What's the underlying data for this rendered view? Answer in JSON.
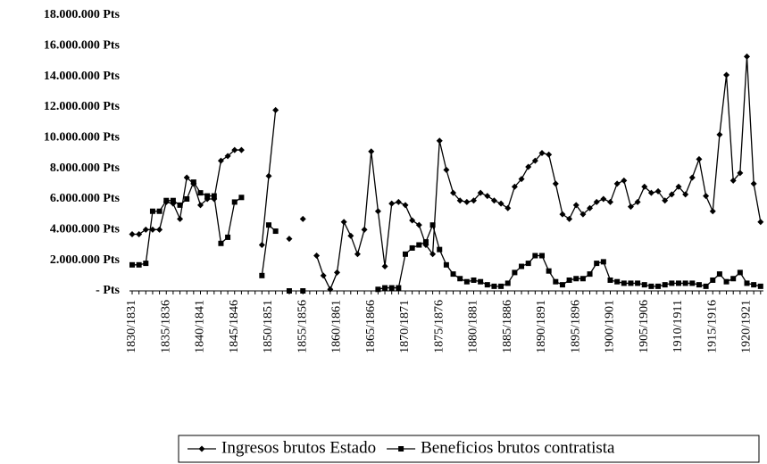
{
  "chart_data": {
    "type": "line",
    "categories": [
      "1830/1831",
      null,
      null,
      null,
      null,
      "1835/1836",
      null,
      null,
      null,
      null,
      "1840/1841",
      null,
      null,
      null,
      null,
      "1845/1846",
      null,
      null,
      null,
      null,
      "1850/1851",
      null,
      null,
      null,
      null,
      "1855/1856",
      null,
      null,
      null,
      null,
      "1860/1861",
      null,
      null,
      null,
      null,
      "1865/1866",
      null,
      null,
      null,
      null,
      "1870/1871",
      null,
      null,
      null,
      null,
      "1875/1876",
      null,
      null,
      null,
      null,
      "1880/1881",
      null,
      null,
      null,
      null,
      "1885/1886",
      null,
      null,
      null,
      null,
      "1890/1891",
      null,
      null,
      null,
      null,
      "1895/1896",
      null,
      null,
      null,
      null,
      "1900/1901",
      null,
      null,
      null,
      null,
      "1905/1906",
      null,
      null,
      null,
      null,
      "1910/1911",
      null,
      null,
      null,
      null,
      "1915/1916",
      null,
      null,
      null,
      null,
      "1920/1921",
      null,
      null
    ],
    "series": [
      {
        "name": "Ingresos brutos Estado",
        "color": "#000000",
        "marker": "diamond",
        "values": [
          3700000,
          3700000,
          4000000,
          4000000,
          4000000,
          5800000,
          5700000,
          4700000,
          7400000,
          7000000,
          5600000,
          6000000,
          6000000,
          8500000,
          8800000,
          9200000,
          9200000,
          null,
          null,
          3000000,
          7500000,
          11800000,
          null,
          3400000,
          null,
          4700000,
          null,
          2300000,
          1000000,
          100000,
          1200000,
          4500000,
          3600000,
          2400000,
          4000000,
          9100000,
          5200000,
          1600000,
          5700000,
          5800000,
          5600000,
          4600000,
          4300000,
          3000000,
          2400000,
          9800000,
          7900000,
          6400000,
          5900000,
          5800000,
          5900000,
          6400000,
          6200000,
          5900000,
          5700000,
          5400000,
          6800000,
          7300000,
          8100000,
          8500000,
          9000000,
          8900000,
          7000000,
          5000000,
          4700000,
          5600000,
          5000000,
          5400000,
          5800000,
          6000000,
          5800000,
          7000000,
          7200000,
          5500000,
          5800000,
          6800000,
          6400000,
          6500000,
          5900000,
          6300000,
          6800000,
          6300000,
          7400000,
          8600000,
          6200000,
          5200000,
          10200000,
          14100000,
          7200000,
          7700000,
          15300000,
          7000000,
          4500000
        ]
      },
      {
        "name": "Beneficios brutos contratista",
        "color": "#000000",
        "marker": "square",
        "values": [
          1700000,
          1700000,
          1800000,
          5200000,
          5200000,
          5900000,
          5900000,
          5600000,
          6000000,
          7100000,
          6400000,
          6200000,
          6200000,
          3100000,
          3500000,
          5800000,
          6100000,
          null,
          null,
          1000000,
          4300000,
          3900000,
          null,
          0,
          null,
          0,
          null,
          null,
          null,
          null,
          null,
          null,
          null,
          null,
          null,
          null,
          100000,
          200000,
          200000,
          200000,
          2400000,
          2800000,
          3000000,
          3200000,
          4300000,
          2700000,
          1700000,
          1100000,
          800000,
          600000,
          700000,
          600000,
          400000,
          300000,
          300000,
          500000,
          1200000,
          1600000,
          1800000,
          2300000,
          2300000,
          1300000,
          600000,
          400000,
          700000,
          800000,
          800000,
          1100000,
          1800000,
          1900000,
          700000,
          600000,
          500000,
          500000,
          500000,
          400000,
          300000,
          300000,
          400000,
          500000,
          500000,
          500000,
          500000,
          400000,
          300000,
          700000,
          1100000,
          600000,
          800000,
          1200000,
          500000,
          400000,
          300000
        ]
      }
    ],
    "ylim": [
      0,
      18000000
    ],
    "yticks": [
      {
        "value": 0,
        "label": "- Pts"
      },
      {
        "value": 2000000,
        "label": "2.000.000 Pts"
      },
      {
        "value": 4000000,
        "label": "4.000.000 Pts"
      },
      {
        "value": 6000000,
        "label": "6.000.000 Pts"
      },
      {
        "value": 8000000,
        "label": "8.000.000 Pts"
      },
      {
        "value": 10000000,
        "label": "10.000.000 Pts"
      },
      {
        "value": 12000000,
        "label": "12.000.000 Pts"
      },
      {
        "value": 14000000,
        "label": "14.000.000 Pts"
      },
      {
        "value": 16000000,
        "label": "16.000.000 Pts"
      },
      {
        "value": 18000000,
        "label": "18.000.000 Pts"
      }
    ],
    "legend": "bottom"
  }
}
